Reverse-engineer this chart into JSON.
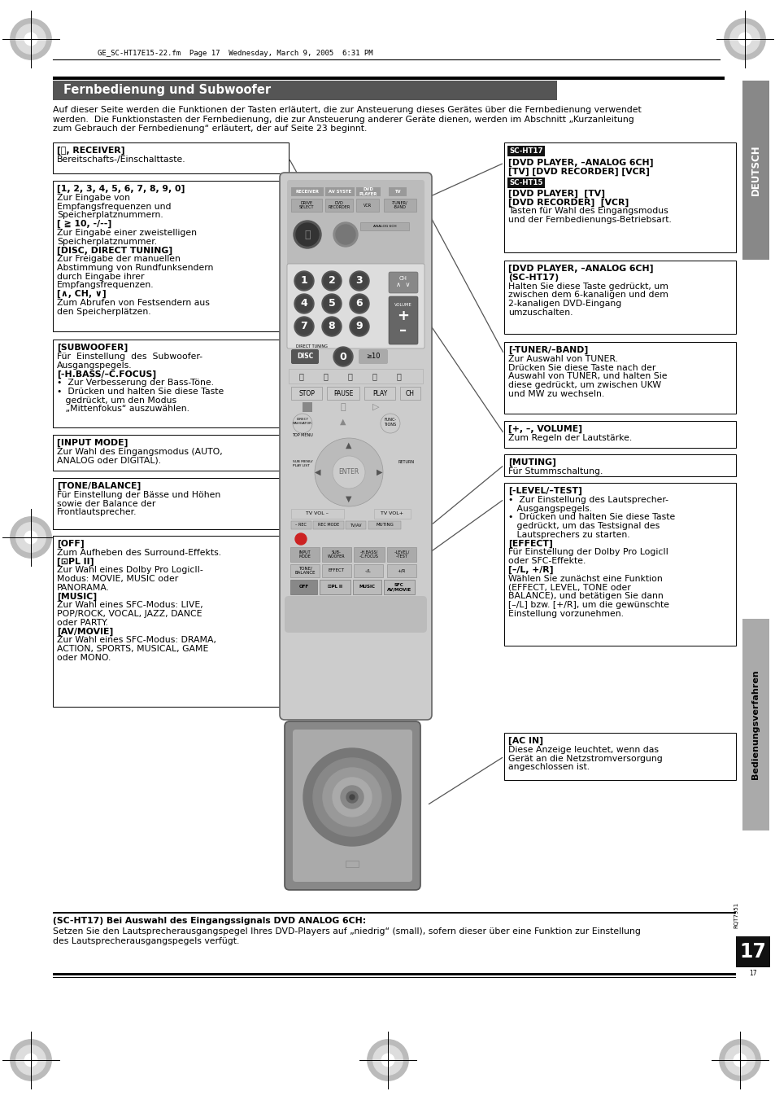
{
  "page_bg": "#ffffff",
  "title_bg": "#555555",
  "title_text": "Fernbedienung und Subwoofer",
  "title_text_color": "#ffffff",
  "sidebar_deutsch_bg": "#888888",
  "sidebar_bedien_bg": "#aaaaaa",
  "page_number_bg": "#111111",
  "page_number_text_color": "#ffffff",
  "header_stamp_text": "GE_SC-HT17E15-22.fm  Page 17  Wednesday, March 9, 2005  6:31 PM",
  "intro_text": "Auf dieser Seite werden die Funktionen der Tasten erläutert, die zur Ansteuerung dieses Gerätes über die Fernbedienung verwendet\nwerden.  Die Funktionstasten der Fernbedienung, die zur Ansteuerung anderer Geräte dienen, werden im Abschnitt „Kurzanleitung\nzum Gebrauch der Fernbedienung“ erläutert, der auf Seite 23 beginnt.",
  "footer_bold": "(SC-HT17) Bei Auswahl des Eingangssignals DVD ANALOG 6CH:",
  "footer_body": "Setzen Sie den Lautsprecherausgangspegel Ihres DVD-Players auf „niedrig“ (small), sofern dieser über eine Funktion zur Einstellung\ndes Lautsprecherausgangspegels verfügt."
}
